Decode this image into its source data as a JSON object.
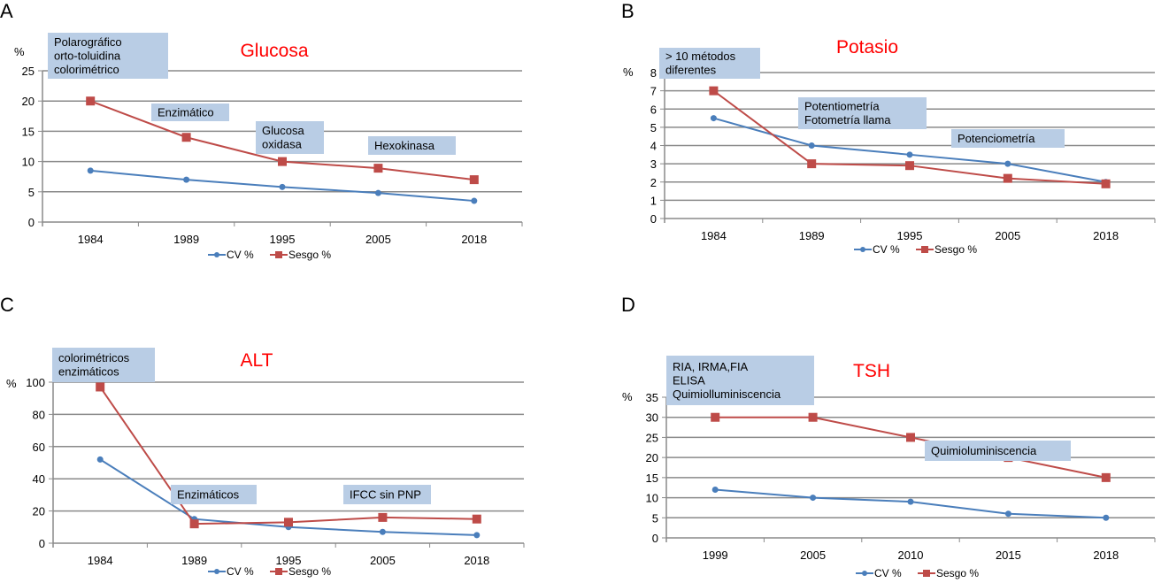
{
  "chart_data": [
    {
      "panel": "A",
      "type": "line",
      "title": "Glucosa",
      "ylabel": "%",
      "categories": [
        "1984",
        "1989",
        "1995",
        "2005",
        "2018"
      ],
      "ylim": [
        0,
        25
      ],
      "yticks": [
        0,
        5,
        10,
        15,
        20,
        25
      ],
      "grid": true,
      "legend": "bottom",
      "series": [
        {
          "name": "CV %",
          "color": "#4a7ebb",
          "marker": "diamond",
          "values": [
            8.5,
            7,
            5.8,
            4.8,
            3.5
          ]
        },
        {
          "name": "Sesgo %",
          "color": "#be4b48",
          "marker": "square",
          "values": [
            20,
            14,
            10,
            8.9,
            7
          ]
        }
      ],
      "annotations": [
        {
          "lines": [
            "Polarográfico",
            "orto-toluidina",
            "colorimétrico"
          ]
        },
        {
          "lines": [
            "Enzimático"
          ]
        },
        {
          "lines": [
            "Glucosa",
            "oxidasa"
          ]
        },
        {
          "lines": [
            "Hexokinasa"
          ]
        }
      ]
    },
    {
      "panel": "B",
      "type": "line",
      "title": "Potasio",
      "ylabel": "%",
      "categories": [
        "1984",
        "1989",
        "1995",
        "2005",
        "2018"
      ],
      "ylim": [
        0,
        8
      ],
      "yticks": [
        0,
        1,
        2,
        3,
        4,
        5,
        6,
        7,
        8
      ],
      "grid": true,
      "legend": "bottom",
      "series": [
        {
          "name": "CV %",
          "color": "#4a7ebb",
          "marker": "diamond",
          "values": [
            5.5,
            4,
            3.5,
            3,
            2
          ]
        },
        {
          "name": "Sesgo %",
          "color": "#be4b48",
          "marker": "square",
          "values": [
            7,
            3,
            2.9,
            2.2,
            1.9
          ]
        }
      ],
      "annotations": [
        {
          "lines": [
            "> 10 métodos",
            "diferentes"
          ]
        },
        {
          "lines": [
            "Potentiometría",
            "Fotometría llama"
          ]
        },
        {
          "lines": [
            "Potenciometría"
          ]
        }
      ]
    },
    {
      "panel": "C",
      "type": "line",
      "title": "ALT",
      "ylabel": "%",
      "categories": [
        "1984",
        "1989",
        "1995",
        "2005",
        "2018"
      ],
      "ylim": [
        0,
        100
      ],
      "yticks": [
        0,
        20,
        40,
        60,
        80,
        100
      ],
      "grid": true,
      "legend": "bottom",
      "series": [
        {
          "name": "CV %",
          "color": "#4a7ebb",
          "marker": "diamond",
          "values": [
            52,
            15,
            10,
            7,
            5
          ]
        },
        {
          "name": "Sesgo %",
          "color": "#be4b48",
          "marker": "square",
          "values": [
            97,
            12,
            13,
            16,
            15
          ]
        }
      ],
      "annotations": [
        {
          "lines": [
            "colorimétricos",
            "enzimáticos"
          ]
        },
        {
          "lines": [
            "Enzimáticos"
          ]
        },
        {
          "lines": [
            "IFCC sin PNP"
          ]
        }
      ]
    },
    {
      "panel": "D",
      "type": "line",
      "title": "TSH",
      "ylabel": "%",
      "categories": [
        "1999",
        "2005",
        "2010",
        "2015",
        "2018"
      ],
      "ylim": [
        0,
        35
      ],
      "yticks": [
        0,
        5,
        10,
        15,
        20,
        25,
        30,
        35
      ],
      "grid": true,
      "legend": "bottom",
      "series": [
        {
          "name": "CV %",
          "color": "#4a7ebb",
          "marker": "diamond",
          "values": [
            12,
            10,
            9,
            6,
            5
          ]
        },
        {
          "name": "Sesgo %",
          "color": "#be4b48",
          "marker": "square",
          "values": [
            30,
            30,
            25,
            20,
            15
          ]
        }
      ],
      "annotations": [
        {
          "lines": [
            "RIA, IRMA,FIA",
            " ELISA",
            "Quimiolluminiscencia"
          ]
        },
        {
          "lines": [
            "Quimioluminiscencia"
          ]
        }
      ]
    }
  ]
}
